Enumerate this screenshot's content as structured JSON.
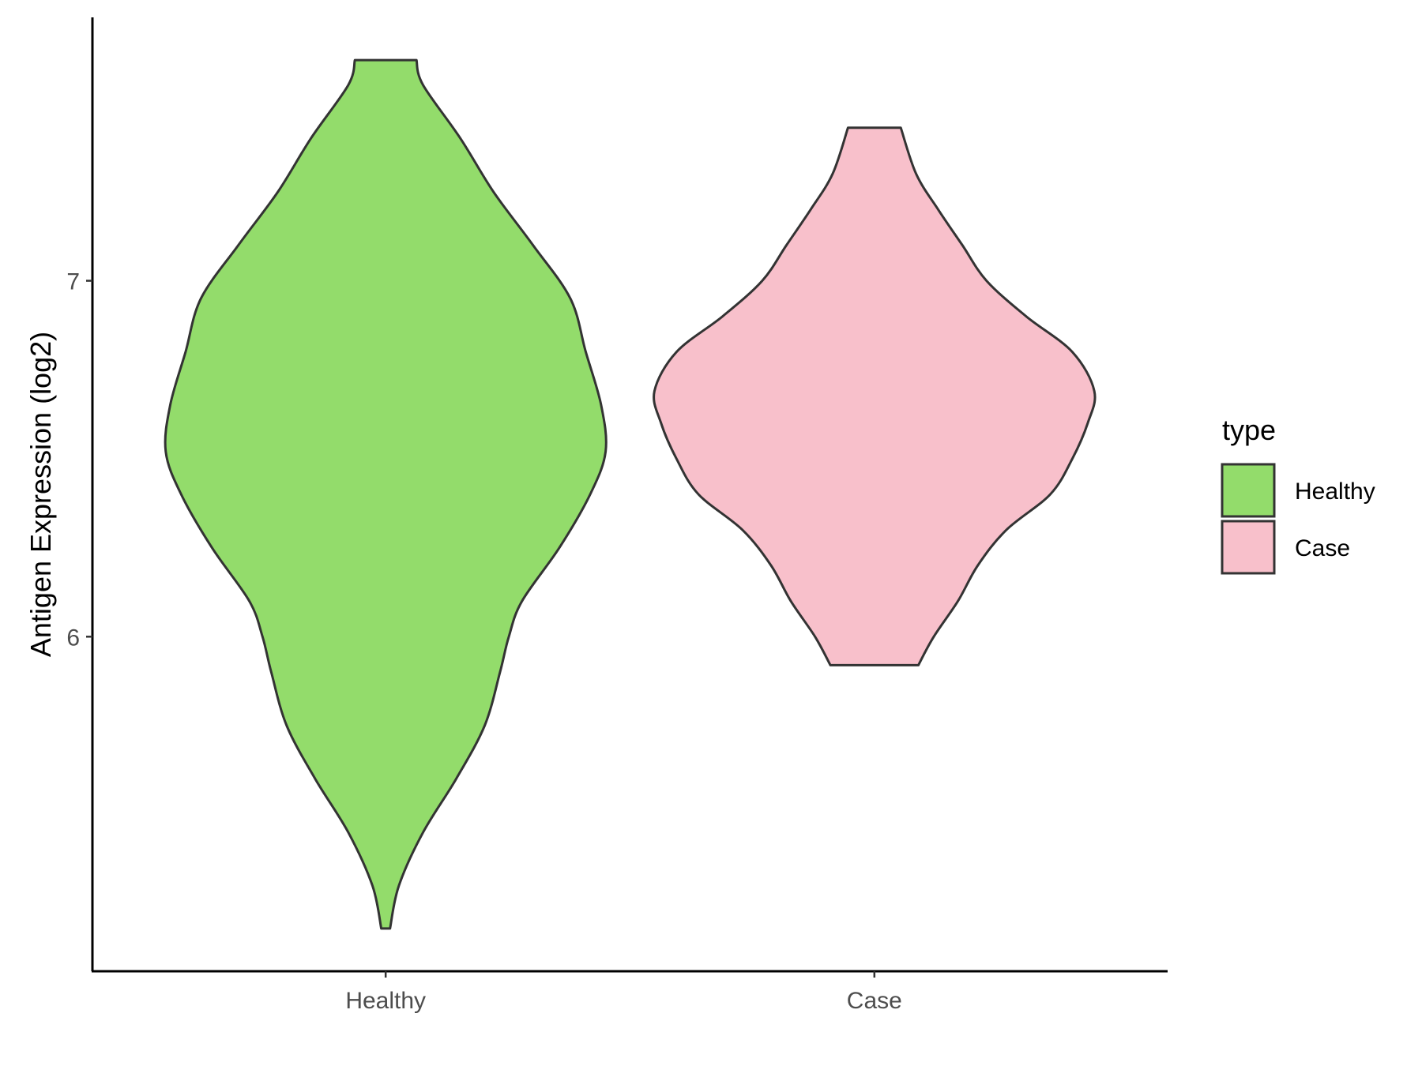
{
  "chart_data": {
    "type": "violin",
    "ylabel": "Antigen Expression (log2)",
    "xlabel": "",
    "categories": [
      "Healthy",
      "Case"
    ],
    "y_ticks": [
      6,
      7
    ],
    "ylim": [
      5.06,
      7.74
    ],
    "grid": false,
    "legend": {
      "title": "type",
      "position": "right",
      "entries": [
        "Healthy",
        "Case"
      ]
    },
    "colors": {
      "Healthy": "#93dc6b",
      "Case": "#f8c0cb",
      "outline": "#333333",
      "axis": "#000000"
    },
    "series": [
      {
        "name": "Healthy",
        "min": 5.18,
        "max": 7.62,
        "density_profile": [
          [
            5.18,
            0.02
          ],
          [
            5.3,
            0.06
          ],
          [
            5.45,
            0.17
          ],
          [
            5.6,
            0.32
          ],
          [
            5.75,
            0.45
          ],
          [
            5.9,
            0.52
          ],
          [
            6.0,
            0.56
          ],
          [
            6.1,
            0.62
          ],
          [
            6.25,
            0.79
          ],
          [
            6.4,
            0.93
          ],
          [
            6.52,
            1.0
          ],
          [
            6.65,
            0.98
          ],
          [
            6.8,
            0.91
          ],
          [
            6.95,
            0.84
          ],
          [
            7.1,
            0.67
          ],
          [
            7.25,
            0.49
          ],
          [
            7.4,
            0.34
          ],
          [
            7.55,
            0.17
          ],
          [
            7.62,
            0.14
          ]
        ]
      },
      {
        "name": "Case",
        "min": 5.92,
        "max": 7.43,
        "density_profile": [
          [
            5.92,
            0.2
          ],
          [
            6.0,
            0.27
          ],
          [
            6.1,
            0.38
          ],
          [
            6.2,
            0.47
          ],
          [
            6.3,
            0.6
          ],
          [
            6.4,
            0.8
          ],
          [
            6.5,
            0.9
          ],
          [
            6.6,
            0.97
          ],
          [
            6.69,
            1.0
          ],
          [
            6.8,
            0.9
          ],
          [
            6.9,
            0.69
          ],
          [
            7.0,
            0.51
          ],
          [
            7.1,
            0.4
          ],
          [
            7.2,
            0.29
          ],
          [
            7.3,
            0.19
          ],
          [
            7.43,
            0.12
          ]
        ]
      }
    ]
  }
}
